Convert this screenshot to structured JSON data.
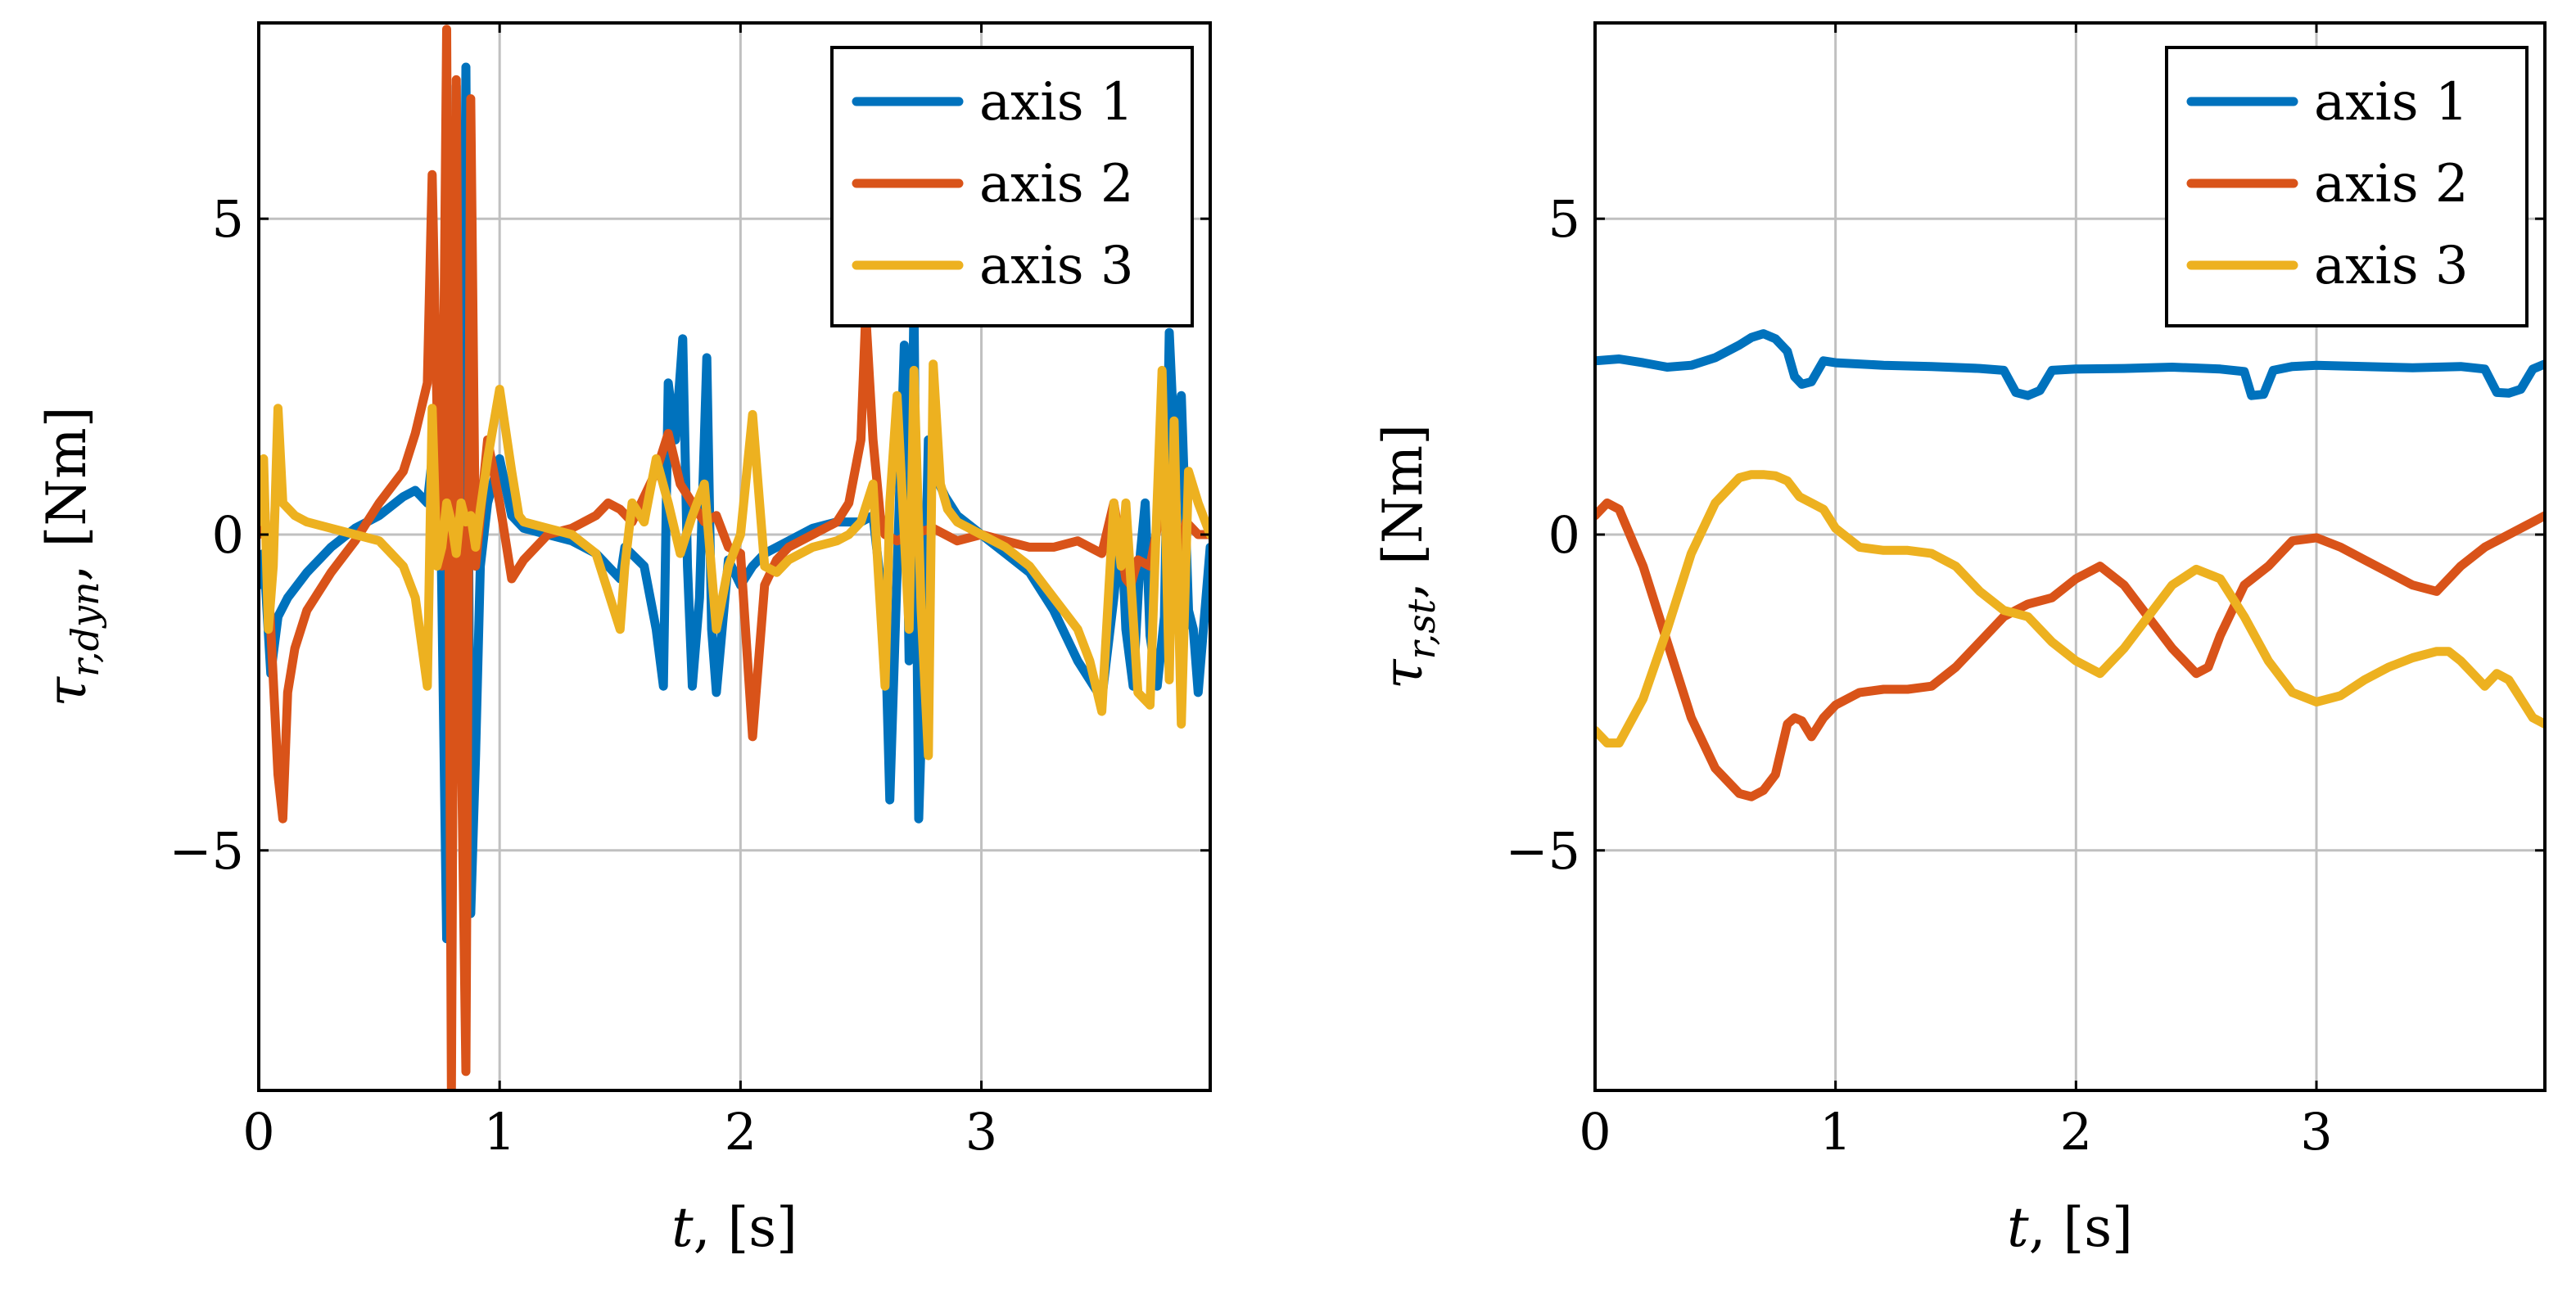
{
  "chart_data": [
    {
      "type": "line",
      "title": "",
      "xlabel": {
        "var": "t",
        "unit": ", [s]"
      },
      "ylabel": {
        "var": "τ",
        "sub": "r,dyn",
        "unit": ", [Nm]"
      },
      "xlim": [
        0,
        3.95
      ],
      "ylim": [
        -8.8,
        8.1
      ],
      "x_ticks": [
        0,
        1,
        2,
        3
      ],
      "x_tick_labels": [
        "0",
        "1",
        "2",
        "3"
      ],
      "y_ticks": [
        -5,
        0,
        5
      ],
      "y_tick_labels": [
        "−5",
        "0",
        "5"
      ],
      "grid": true,
      "legend_position": "top-right",
      "series": [
        {
          "name": "axis 1",
          "color": "#0072bd",
          "x": [
            0.0,
            0.02,
            0.05,
            0.08,
            0.12,
            0.2,
            0.3,
            0.4,
            0.5,
            0.6,
            0.65,
            0.7,
            0.72,
            0.75,
            0.78,
            0.8,
            0.82,
            0.84,
            0.86,
            0.88,
            0.9,
            0.92,
            0.95,
            1.0,
            1.05,
            1.1,
            1.2,
            1.3,
            1.4,
            1.5,
            1.52,
            1.6,
            1.65,
            1.68,
            1.7,
            1.73,
            1.76,
            1.78,
            1.8,
            1.83,
            1.86,
            1.88,
            1.9,
            1.95,
            2.0,
            2.05,
            2.1,
            2.2,
            2.3,
            2.4,
            2.5,
            2.55,
            2.6,
            2.62,
            2.65,
            2.68,
            2.7,
            2.72,
            2.74,
            2.76,
            2.78,
            2.8,
            2.85,
            2.9,
            3.0,
            3.1,
            3.2,
            3.3,
            3.4,
            3.5,
            3.55,
            3.58,
            3.6,
            3.63,
            3.66,
            3.68,
            3.7,
            3.73,
            3.76,
            3.78,
            3.8,
            3.83,
            3.86,
            3.88,
            3.9,
            3.95
          ],
          "y": [
            -0.8,
            -0.3,
            -2.2,
            -1.3,
            -1.0,
            -0.6,
            -0.2,
            0.1,
            0.3,
            0.6,
            0.7,
            0.5,
            1.2,
            1.8,
            -6.4,
            -5.0,
            7.1,
            -3.0,
            7.4,
            -6.0,
            -3.5,
            -0.5,
            0.5,
            1.2,
            0.3,
            0.1,
            0.0,
            -0.1,
            -0.3,
            -0.7,
            -0.2,
            -0.5,
            -1.5,
            -2.4,
            2.4,
            1.5,
            3.1,
            -0.5,
            -2.4,
            -1.0,
            2.8,
            -1.5,
            -2.5,
            -0.4,
            -0.8,
            -0.5,
            -0.3,
            -0.1,
            0.1,
            0.2,
            0.2,
            0.3,
            -1.4,
            -4.2,
            -0.6,
            3.0,
            -2.0,
            3.7,
            -4.5,
            -2.0,
            1.5,
            1.0,
            0.6,
            0.3,
            0.0,
            -0.3,
            -0.6,
            -1.2,
            -2.0,
            -2.6,
            -1.0,
            0.2,
            -1.5,
            -2.4,
            -0.3,
            0.5,
            -1.6,
            -2.4,
            -1.3,
            3.2,
            1.5,
            2.2,
            -1.2,
            -1.5,
            -2.5,
            -0.2
          ]
        },
        {
          "name": "axis 2",
          "color": "#d95319",
          "x": [
            0.0,
            0.02,
            0.05,
            0.08,
            0.1,
            0.12,
            0.15,
            0.2,
            0.3,
            0.4,
            0.5,
            0.6,
            0.65,
            0.7,
            0.72,
            0.74,
            0.76,
            0.78,
            0.8,
            0.82,
            0.84,
            0.86,
            0.88,
            0.9,
            0.92,
            0.95,
            1.0,
            1.05,
            1.1,
            1.2,
            1.3,
            1.4,
            1.45,
            1.5,
            1.55,
            1.6,
            1.65,
            1.7,
            1.75,
            1.8,
            1.85,
            1.9,
            1.95,
            2.0,
            2.05,
            2.1,
            2.15,
            2.2,
            2.3,
            2.4,
            2.45,
            2.5,
            2.52,
            2.55,
            2.58,
            2.6,
            2.65,
            2.7,
            2.8,
            2.9,
            3.0,
            3.1,
            3.2,
            3.3,
            3.4,
            3.5,
            3.55,
            3.6,
            3.62,
            3.65,
            3.7,
            3.75,
            3.8,
            3.85,
            3.9,
            3.95
          ],
          "y": [
            0.0,
            0.8,
            -1.5,
            -3.8,
            -4.5,
            -2.5,
            -1.8,
            -1.2,
            -0.6,
            -0.1,
            0.5,
            1.0,
            1.6,
            2.4,
            5.7,
            2.0,
            -0.5,
            8.0,
            -8.8,
            7.2,
            -3.0,
            -8.5,
            6.9,
            -0.5,
            0.3,
            1.5,
            0.5,
            -0.7,
            -0.4,
            0.0,
            0.1,
            0.3,
            0.5,
            0.4,
            0.2,
            0.6,
            1.0,
            1.6,
            0.8,
            0.5,
            0.2,
            0.3,
            -0.2,
            -0.3,
            -3.2,
            -0.8,
            -0.4,
            -0.2,
            0.0,
            0.2,
            0.5,
            1.5,
            3.5,
            1.5,
            0.3,
            0.0,
            -0.1,
            0.0,
            0.1,
            -0.1,
            0.0,
            -0.1,
            -0.2,
            -0.2,
            -0.1,
            -0.3,
            0.5,
            -0.7,
            -0.8,
            -0.4,
            -0.5,
            0.5,
            -0.8,
            0.2,
            0.0,
            0.0
          ]
        },
        {
          "name": "axis 3",
          "color": "#edb120",
          "x": [
            0.0,
            0.02,
            0.04,
            0.06,
            0.08,
            0.1,
            0.15,
            0.2,
            0.3,
            0.4,
            0.5,
            0.55,
            0.6,
            0.65,
            0.7,
            0.72,
            0.74,
            0.76,
            0.78,
            0.8,
            0.82,
            0.84,
            0.86,
            0.88,
            0.9,
            0.92,
            0.95,
            1.0,
            1.05,
            1.08,
            1.1,
            1.2,
            1.3,
            1.4,
            1.5,
            1.52,
            1.55,
            1.6,
            1.65,
            1.7,
            1.75,
            1.8,
            1.85,
            1.9,
            1.95,
            2.0,
            2.05,
            2.1,
            2.15,
            2.2,
            2.3,
            2.4,
            2.45,
            2.5,
            2.55,
            2.6,
            2.62,
            2.65,
            2.7,
            2.72,
            2.75,
            2.78,
            2.8,
            2.83,
            2.86,
            2.9,
            3.0,
            3.1,
            3.2,
            3.3,
            3.4,
            3.45,
            3.5,
            3.55,
            3.58,
            3.6,
            3.65,
            3.7,
            3.72,
            3.75,
            3.78,
            3.8,
            3.83,
            3.86,
            3.9,
            3.95
          ],
          "y": [
            0.2,
            1.2,
            -1.5,
            -0.5,
            2.0,
            0.5,
            0.3,
            0.2,
            0.1,
            0.0,
            -0.1,
            -0.3,
            -0.5,
            -1.0,
            -2.4,
            2.0,
            -0.5,
            -0.2,
            0.5,
            0.2,
            -0.3,
            0.5,
            0.2,
            0.3,
            -0.2,
            0.4,
            1.2,
            2.3,
            1.0,
            0.3,
            0.2,
            0.1,
            0.0,
            -0.3,
            -1.5,
            -0.5,
            0.5,
            0.2,
            1.2,
            0.5,
            -0.3,
            0.3,
            0.8,
            -1.5,
            -0.5,
            0.0,
            1.9,
            -0.5,
            -0.6,
            -0.4,
            -0.2,
            -0.1,
            0.0,
            0.2,
            0.8,
            -2.4,
            0.5,
            2.2,
            -1.5,
            2.6,
            -1.2,
            -3.5,
            2.7,
            0.8,
            0.4,
            0.2,
            0.0,
            -0.2,
            -0.5,
            -1.0,
            -1.5,
            -2.0,
            -2.8,
            0.5,
            -0.5,
            0.5,
            -2.5,
            -2.7,
            -0.5,
            2.6,
            -2.3,
            1.8,
            -3.0,
            1.0,
            0.5,
            0.0
          ]
        }
      ]
    },
    {
      "type": "line",
      "title": "",
      "xlabel": {
        "var": "t",
        "unit": ", [s]"
      },
      "ylabel": {
        "var": "τ",
        "sub": "r,st",
        "unit": ", [Nm]"
      },
      "xlim": [
        0,
        3.95
      ],
      "ylim": [
        -8.8,
        8.1
      ],
      "x_ticks": [
        0,
        1,
        2,
        3
      ],
      "x_tick_labels": [
        "0",
        "1",
        "2",
        "3"
      ],
      "y_ticks": [
        -5,
        0,
        5
      ],
      "y_tick_labels": [
        "−5",
        "0",
        "5"
      ],
      "grid": true,
      "legend_position": "top-right",
      "series": [
        {
          "name": "axis 1",
          "color": "#0072bd",
          "x": [
            0.0,
            0.1,
            0.2,
            0.3,
            0.4,
            0.5,
            0.6,
            0.65,
            0.7,
            0.75,
            0.8,
            0.83,
            0.86,
            0.9,
            0.95,
            1.0,
            1.2,
            1.4,
            1.6,
            1.7,
            1.75,
            1.8,
            1.85,
            1.9,
            2.0,
            2.2,
            2.4,
            2.6,
            2.7,
            2.73,
            2.78,
            2.82,
            2.9,
            3.0,
            3.2,
            3.4,
            3.6,
            3.7,
            3.75,
            3.8,
            3.85,
            3.9,
            3.95
          ],
          "y": [
            2.75,
            2.78,
            2.72,
            2.65,
            2.68,
            2.8,
            3.0,
            3.12,
            3.18,
            3.1,
            2.9,
            2.5,
            2.38,
            2.42,
            2.75,
            2.72,
            2.68,
            2.66,
            2.63,
            2.6,
            2.25,
            2.2,
            2.28,
            2.6,
            2.62,
            2.63,
            2.65,
            2.62,
            2.58,
            2.2,
            2.22,
            2.6,
            2.66,
            2.68,
            2.66,
            2.64,
            2.66,
            2.62,
            2.25,
            2.24,
            2.3,
            2.62,
            2.7
          ]
        },
        {
          "name": "axis 2",
          "color": "#d95319",
          "x": [
            0.0,
            0.05,
            0.1,
            0.2,
            0.3,
            0.4,
            0.5,
            0.6,
            0.65,
            0.7,
            0.75,
            0.8,
            0.83,
            0.86,
            0.9,
            0.95,
            1.0,
            1.1,
            1.2,
            1.3,
            1.4,
            1.5,
            1.6,
            1.7,
            1.8,
            1.9,
            2.0,
            2.1,
            2.2,
            2.3,
            2.4,
            2.5,
            2.55,
            2.6,
            2.7,
            2.8,
            2.9,
            3.0,
            3.1,
            3.2,
            3.3,
            3.4,
            3.5,
            3.6,
            3.7,
            3.8,
            3.9,
            3.95
          ],
          "y": [
            0.3,
            0.5,
            0.4,
            -0.5,
            -1.7,
            -2.9,
            -3.7,
            -4.1,
            -4.15,
            -4.05,
            -3.8,
            -3.0,
            -2.9,
            -2.95,
            -3.2,
            -2.9,
            -2.7,
            -2.5,
            -2.45,
            -2.45,
            -2.4,
            -2.1,
            -1.7,
            -1.3,
            -1.1,
            -1.0,
            -0.7,
            -0.5,
            -0.8,
            -1.3,
            -1.8,
            -2.2,
            -2.1,
            -1.6,
            -0.8,
            -0.5,
            -0.1,
            -0.05,
            -0.2,
            -0.4,
            -0.6,
            -0.8,
            -0.9,
            -0.5,
            -0.2,
            0.0,
            0.2,
            0.3
          ]
        },
        {
          "name": "axis 3",
          "color": "#edb120",
          "x": [
            0.0,
            0.05,
            0.1,
            0.2,
            0.3,
            0.4,
            0.5,
            0.6,
            0.65,
            0.7,
            0.75,
            0.8,
            0.85,
            0.9,
            0.95,
            1.0,
            1.1,
            1.2,
            1.3,
            1.4,
            1.5,
            1.6,
            1.7,
            1.8,
            1.9,
            2.0,
            2.1,
            2.2,
            2.3,
            2.4,
            2.5,
            2.6,
            2.7,
            2.8,
            2.9,
            3.0,
            3.1,
            3.2,
            3.3,
            3.4,
            3.5,
            3.55,
            3.6,
            3.65,
            3.7,
            3.75,
            3.8,
            3.85,
            3.9,
            3.95
          ],
          "y": [
            -3.1,
            -3.3,
            -3.3,
            -2.6,
            -1.5,
            -0.3,
            0.5,
            0.9,
            0.95,
            0.95,
            0.93,
            0.85,
            0.6,
            0.5,
            0.4,
            0.1,
            -0.2,
            -0.25,
            -0.25,
            -0.3,
            -0.5,
            -0.9,
            -1.2,
            -1.3,
            -1.7,
            -2.0,
            -2.2,
            -1.8,
            -1.3,
            -0.8,
            -0.55,
            -0.7,
            -1.3,
            -2.0,
            -2.5,
            -2.65,
            -2.55,
            -2.3,
            -2.1,
            -1.95,
            -1.85,
            -1.85,
            -2.0,
            -2.2,
            -2.4,
            -2.2,
            -2.3,
            -2.6,
            -2.9,
            -3.0
          ]
        }
      ]
    }
  ]
}
